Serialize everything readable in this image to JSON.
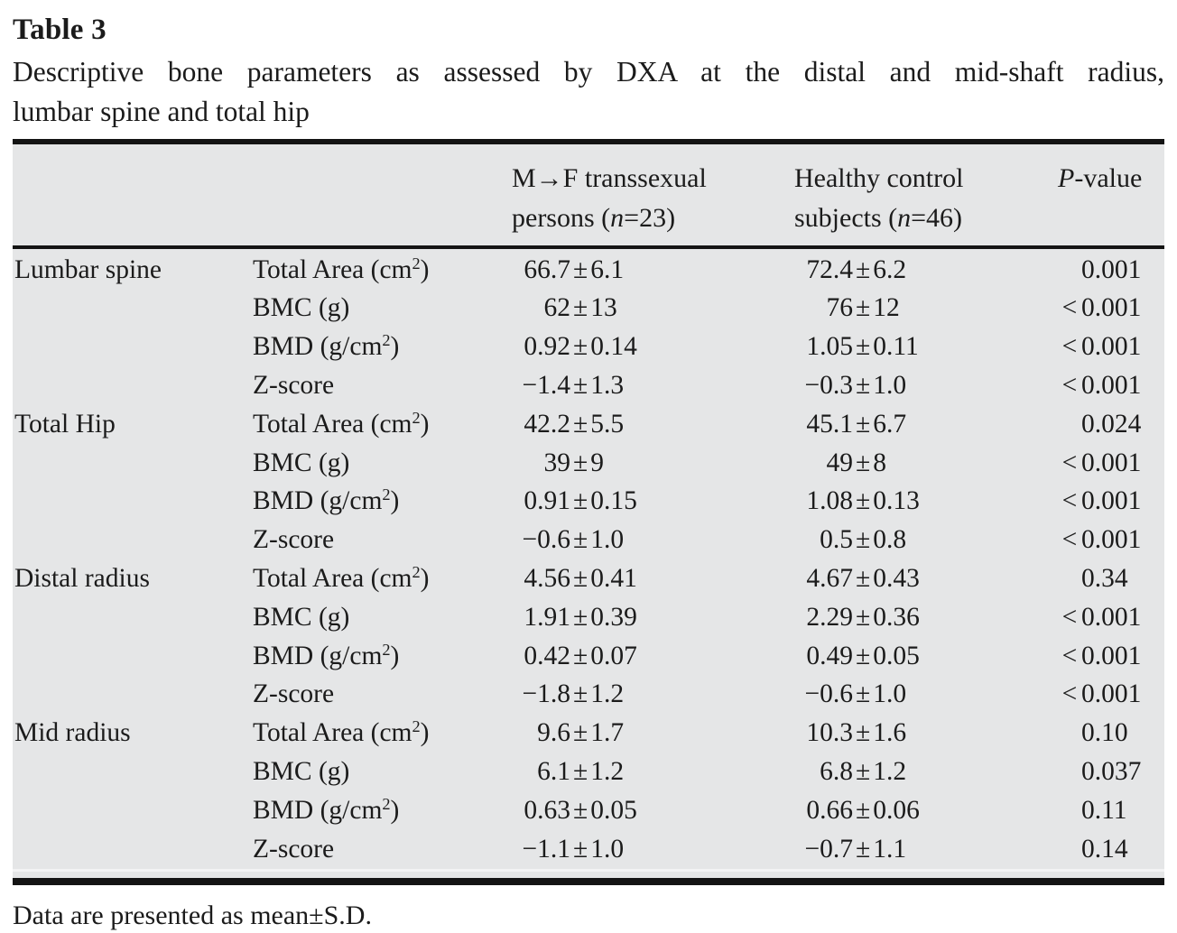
{
  "misc": {
    "pm": "±"
  },
  "colors": {
    "table_background": "#e5e6e7",
    "rule": "#141414",
    "text": "#1b1b1b"
  },
  "title": {
    "label": "Table 3"
  },
  "caption": {
    "line1": "Descriptive bone parameters as assessed by DXA at the distal and mid-shaft radius,",
    "line2": "lumbar spine and total hip"
  },
  "header": {
    "col3_line1": "M→F transsexual",
    "col3_line2_pre": "persons (",
    "col3_line2_var": "n",
    "col3_line2_post": "=23)",
    "col4_line1": "Healthy control",
    "col4_line2_pre": "subjects (",
    "col4_line2_var": "n",
    "col4_line2_post": "=46)",
    "col5_var": "P",
    "col5_post": "-value"
  },
  "table": {
    "rows": [
      {
        "region": "Lumbar spine",
        "param": "Total Area (cm",
        "param_sup": "2",
        "param_post": ")",
        "m_mean": "66.7",
        "m_sd": "6.1",
        "c_mean": "72.4",
        "c_sd": "6.2",
        "p_lt": "",
        "p": "0.001"
      },
      {
        "region": "",
        "param": "BMC (g)",
        "param_sup": "",
        "param_post": "",
        "m_mean": "62",
        "m_sd": "13",
        "c_mean": "76",
        "c_sd": "12",
        "p_lt": "<",
        "p": "0.001"
      },
      {
        "region": "",
        "param": "BMD (g/cm",
        "param_sup": "2",
        "param_post": ")",
        "m_mean": "0.92",
        "m_sd": "0.14",
        "c_mean": "1.05",
        "c_sd": "0.11",
        "p_lt": "<",
        "p": "0.001"
      },
      {
        "region": "",
        "param": "Z-score",
        "param_sup": "",
        "param_post": "",
        "m_mean": "−1.4",
        "m_sd": "1.3",
        "c_mean": "−0.3",
        "c_sd": "1.0",
        "p_lt": "<",
        "p": "0.001"
      },
      {
        "region": "Total Hip",
        "param": "Total Area (cm",
        "param_sup": "2",
        "param_post": ")",
        "m_mean": "42.2",
        "m_sd": "5.5",
        "c_mean": "45.1",
        "c_sd": "6.7",
        "p_lt": "",
        "p": "0.024"
      },
      {
        "region": "",
        "param": "BMC (g)",
        "param_sup": "",
        "param_post": "",
        "m_mean": "39",
        "m_sd": "9",
        "c_mean": "49",
        "c_sd": "8",
        "p_lt": "<",
        "p": "0.001"
      },
      {
        "region": "",
        "param": "BMD (g/cm",
        "param_sup": "2",
        "param_post": ")",
        "m_mean": "0.91",
        "m_sd": "0.15",
        "c_mean": "1.08",
        "c_sd": "0.13",
        "p_lt": "<",
        "p": "0.001"
      },
      {
        "region": "",
        "param": "Z-score",
        "param_sup": "",
        "param_post": "",
        "m_mean": "−0.6",
        "m_sd": "1.0",
        "c_mean": "0.5",
        "c_sd": "0.8",
        "p_lt": "<",
        "p": "0.001"
      },
      {
        "region": "Distal radius",
        "param": "Total Area (cm",
        "param_sup": "2",
        "param_post": ")",
        "m_mean": "4.56",
        "m_sd": "0.41",
        "c_mean": "4.67",
        "c_sd": "0.43",
        "p_lt": "",
        "p": "0.34"
      },
      {
        "region": "",
        "param": "BMC (g)",
        "param_sup": "",
        "param_post": "",
        "m_mean": "1.91",
        "m_sd": "0.39",
        "c_mean": "2.29",
        "c_sd": "0.36",
        "p_lt": "<",
        "p": "0.001"
      },
      {
        "region": "",
        "param": "BMD (g/cm",
        "param_sup": "2",
        "param_post": ")",
        "m_mean": "0.42",
        "m_sd": "0.07",
        "c_mean": "0.49",
        "c_sd": "0.05",
        "p_lt": "<",
        "p": "0.001"
      },
      {
        "region": "",
        "param": "Z-score",
        "param_sup": "",
        "param_post": "",
        "m_mean": "−1.8",
        "m_sd": "1.2",
        "c_mean": "−0.6",
        "c_sd": "1.0",
        "p_lt": "<",
        "p": "0.001"
      },
      {
        "region": "Mid radius",
        "param": "Total Area (cm",
        "param_sup": "2",
        "param_post": ")",
        "m_mean": "9.6",
        "m_sd": "1.7",
        "c_mean": "10.3",
        "c_sd": "1.6",
        "p_lt": "",
        "p": "0.10"
      },
      {
        "region": "",
        "param": "BMC (g)",
        "param_sup": "",
        "param_post": "",
        "m_mean": "6.1",
        "m_sd": "1.2",
        "c_mean": "6.8",
        "c_sd": "1.2",
        "p_lt": "",
        "p": "0.037"
      },
      {
        "region": "",
        "param": "BMD (g/cm",
        "param_sup": "2",
        "param_post": ")",
        "m_mean": "0.63",
        "m_sd": "0.05",
        "c_mean": "0.66",
        "c_sd": "0.06",
        "p_lt": "",
        "p": "0.11"
      },
      {
        "region": "",
        "param": "Z-score",
        "param_sup": "",
        "param_post": "",
        "m_mean": "−1.1",
        "m_sd": "1.0",
        "c_mean": "−0.7",
        "c_sd": "1.1",
        "p_lt": "",
        "p": "0.14"
      }
    ]
  },
  "footnote": {
    "text": "Data are presented as mean±S.D."
  }
}
